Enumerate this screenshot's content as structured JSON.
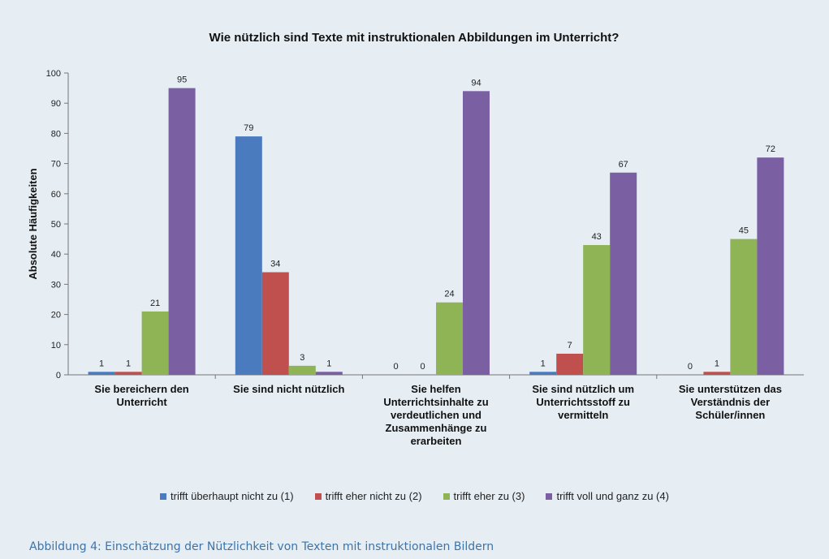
{
  "caption": "Abbildung 4: Einschätzung der Nützlichkeit von Texten mit instruktionalen Bildern",
  "chart_data": {
    "type": "bar",
    "title": "Wie nützlich sind Texte mit instruktionalen Abbildungen im Unterricht?",
    "ylabel": "Absolute Häufigkeiten",
    "xlabel": "",
    "ylim": [
      0,
      100
    ],
    "yticks": [
      0,
      10,
      20,
      30,
      40,
      50,
      60,
      70,
      80,
      90,
      100
    ],
    "grid": false,
    "legend_position": "bottom",
    "categories": [
      [
        "Sie bereichern den",
        "Unterricht"
      ],
      [
        "Sie sind nicht nützlich"
      ],
      [
        "Sie helfen",
        "Unterrichtsinhalte zu",
        "verdeutlichen und",
        "Zusammenhänge zu",
        "erarbeiten"
      ],
      [
        "Sie sind nützlich um",
        "Unterrichtsstoff zu",
        "vermitteln"
      ],
      [
        "Sie unterstützen das",
        "Verständnis der",
        "Schüler/innen"
      ]
    ],
    "series": [
      {
        "name": "trifft überhaupt nicht zu (1)",
        "color": "#4b7bbf",
        "values": [
          1,
          79,
          0,
          1,
          0
        ]
      },
      {
        "name": "trifft eher nicht zu (2)",
        "color": "#c0504d",
        "values": [
          1,
          34,
          0,
          7,
          1
        ]
      },
      {
        "name": "trifft eher zu (3)",
        "color": "#8fb456",
        "values": [
          21,
          3,
          24,
          43,
          45
        ]
      },
      {
        "name": "trifft voll und ganz zu (4)",
        "color": "#7a5fa3",
        "values": [
          95,
          1,
          94,
          67,
          72
        ]
      }
    ]
  }
}
